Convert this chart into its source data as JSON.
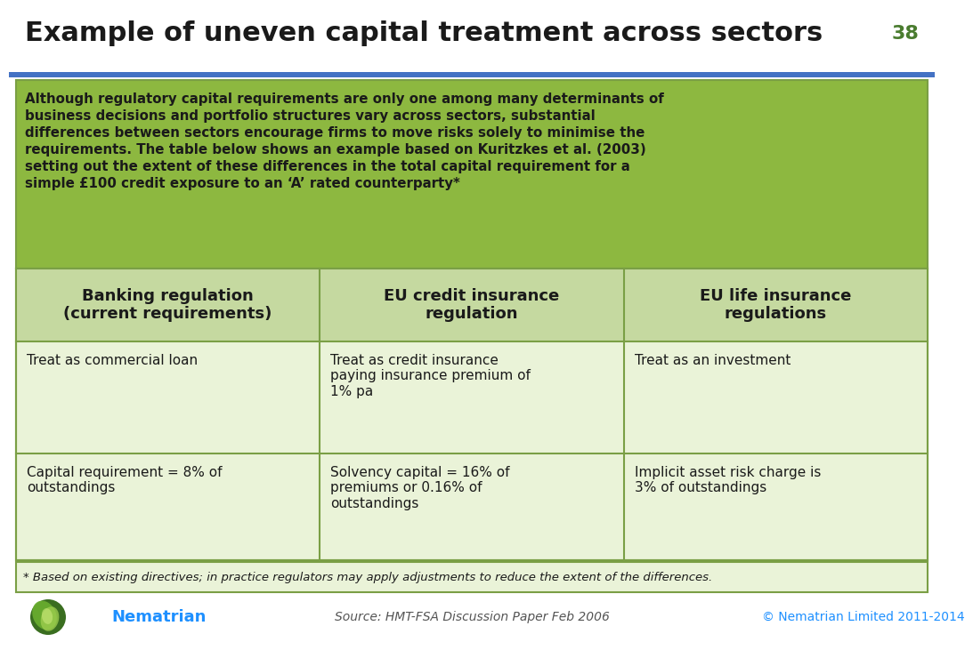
{
  "title": "Example of uneven capital treatment across sectors",
  "slide_number": "38",
  "title_color": "#1a1a1a",
  "title_fontsize": 22,
  "slide_number_color": "#4a7c2f",
  "blue_bar_color": "#4472c4",
  "background_color": "#ffffff",
  "bullet_bg_color": "#8db840",
  "bullet_text_color": "#1a1a1a",
  "bullet_lines": [
    "Although regulatory capital requirements are only one among many determinants of",
    "business decisions and portfolio structures vary across sectors, substantial",
    "differences between sectors encourage firms to move risks solely to minimise the",
    "requirements. The table below shows an example based on Kuritzkes et al. (2003)",
    "setting out the extent of these differences in the total capital requirement for a",
    "simple £100 credit exposure to an ‘A’ rated counterparty*"
  ],
  "header_bg_color": "#c5d9a0",
  "header_text_color": "#1a1a1a",
  "table_bg_color": "#eaf3d8",
  "table_border_color": "#7a9f45",
  "headers": [
    "Banking regulation\n(current requirements)",
    "EU credit insurance\nregulation",
    "EU life insurance\nregulations"
  ],
  "row1": [
    "Treat as commercial loan",
    "Treat as credit insurance\npaying insurance premium of\n1% pa",
    "Treat as an investment"
  ],
  "row2": [
    "Capital requirement = 8% of\noutstandings",
    "Solvency capital = 16% of\npremiums or 0.16% of\noutstandings",
    "Implicit asset risk charge is\n3% of outstandings"
  ],
  "footnote": "* Based on existing directives; in practice regulators may apply adjustments to reduce the extent of the differences.",
  "footnote_bg_color": "#eaf3d8",
  "source_text": "Source: HMT-FSA Discussion Paper Feb 2006",
  "copyright_text": "© Nematrian Limited 2011-2014",
  "nematrian_text": "Nematrian",
  "nematrian_color": "#1e90ff",
  "copyright_color": "#1e90ff",
  "source_color": "#555555"
}
